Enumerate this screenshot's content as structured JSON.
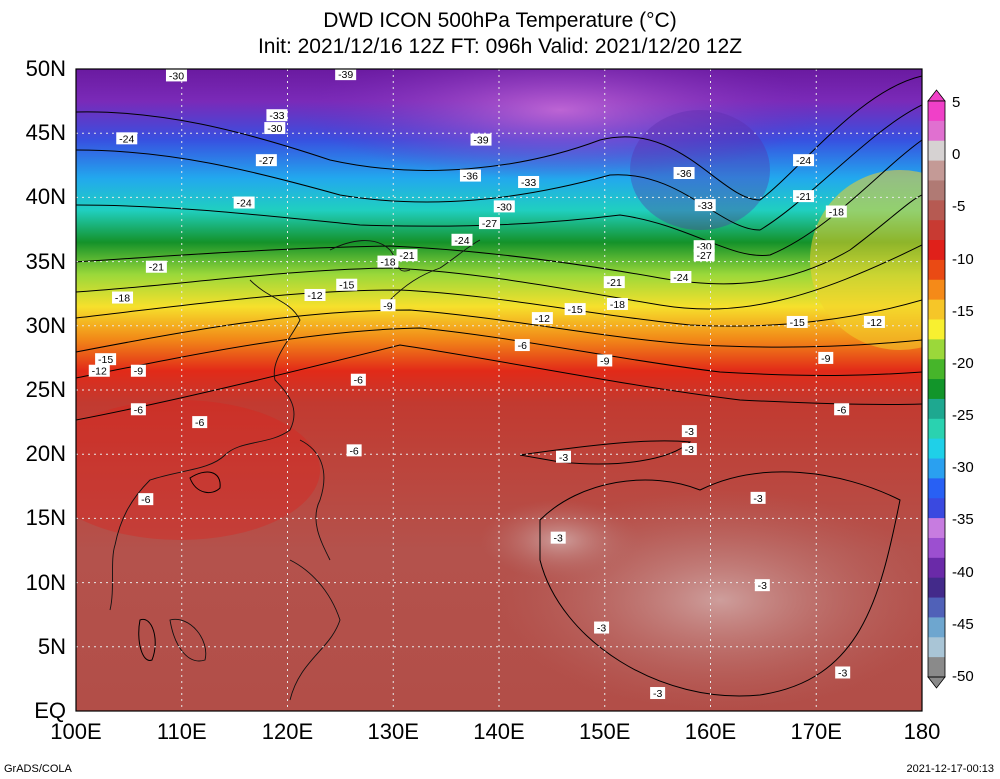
{
  "title": {
    "line1": "DWD ICON 500hPa Temperature (°C)",
    "line2": "Init: 2021/12/16 12Z  FT: 096h  Valid: 2021/12/20 12Z"
  },
  "axes": {
    "lat_labels": [
      "50N",
      "45N",
      "40N",
      "35N",
      "30N",
      "25N",
      "20N",
      "15N",
      "10N",
      "5N",
      "EQ"
    ],
    "lon_labels": [
      "100E",
      "110E",
      "120E",
      "130E",
      "140E",
      "150E",
      "160E",
      "170E",
      "180"
    ]
  },
  "colorbar": {
    "labels": [
      "5",
      "0",
      "-5",
      "-10",
      "-15",
      "-20",
      "-25",
      "-30",
      "-35",
      "-40",
      "-45",
      "-50"
    ],
    "colors": [
      "#8a8a8a",
      "#a9c5d6",
      "#6ea6cf",
      "#5061b8",
      "#432a8a",
      "#6a2aa8",
      "#9c4fd0",
      "#c77ce0",
      "#3a49e0",
      "#2860f4",
      "#2aa0f0",
      "#1fd0e8",
      "#2ad2b0",
      "#1ea890",
      "#12952a",
      "#46b52a",
      "#9bd83a",
      "#f8f030",
      "#f6c628",
      "#f58a18",
      "#ea4a14",
      "#e0201a",
      "#c83a32",
      "#b65a52",
      "#b07a74",
      "#c49a96",
      "#d6d2d2",
      "#e070d0",
      "#f040c8"
    ]
  },
  "contour_labels": [
    {
      "lon": 109.5,
      "lat": 49.5,
      "text": "-30"
    },
    {
      "lon": 125.5,
      "lat": 49.6,
      "text": "-39"
    },
    {
      "lon": 119.0,
      "lat": 46.4,
      "text": "-33"
    },
    {
      "lon": 118.8,
      "lat": 45.4,
      "text": "-30"
    },
    {
      "lon": 104.8,
      "lat": 44.6,
      "text": "-24"
    },
    {
      "lon": 138.3,
      "lat": 44.5,
      "text": "-39"
    },
    {
      "lon": 118.0,
      "lat": 42.9,
      "text": "-27"
    },
    {
      "lon": 137.3,
      "lat": 41.7,
      "text": "-36"
    },
    {
      "lon": 142.8,
      "lat": 41.2,
      "text": "-33"
    },
    {
      "lon": 157.5,
      "lat": 41.9,
      "text": "-36"
    },
    {
      "lon": 168.8,
      "lat": 42.9,
      "text": "-24"
    },
    {
      "lon": 115.9,
      "lat": 39.6,
      "text": "-24"
    },
    {
      "lon": 140.5,
      "lat": 39.3,
      "text": "-30"
    },
    {
      "lon": 159.5,
      "lat": 39.4,
      "text": "-33"
    },
    {
      "lon": 168.8,
      "lat": 40.1,
      "text": "-21"
    },
    {
      "lon": 171.9,
      "lat": 38.9,
      "text": "-18"
    },
    {
      "lon": 139.1,
      "lat": 38.0,
      "text": "-27"
    },
    {
      "lon": 136.5,
      "lat": 36.7,
      "text": "-24"
    },
    {
      "lon": 159.4,
      "lat": 36.2,
      "text": "-30"
    },
    {
      "lon": 159.4,
      "lat": 35.5,
      "text": "-27"
    },
    {
      "lon": 131.3,
      "lat": 35.5,
      "text": "-21"
    },
    {
      "lon": 129.5,
      "lat": 35.0,
      "text": "-18"
    },
    {
      "lon": 107.6,
      "lat": 34.6,
      "text": "-21"
    },
    {
      "lon": 157.2,
      "lat": 33.8,
      "text": "-24"
    },
    {
      "lon": 150.9,
      "lat": 33.4,
      "text": "-21"
    },
    {
      "lon": 125.6,
      "lat": 33.2,
      "text": "-15"
    },
    {
      "lon": 122.6,
      "lat": 32.4,
      "text": "-12"
    },
    {
      "lon": 104.4,
      "lat": 32.2,
      "text": "-18"
    },
    {
      "lon": 151.2,
      "lat": 31.7,
      "text": "-18"
    },
    {
      "lon": 129.5,
      "lat": 31.6,
      "text": "-9"
    },
    {
      "lon": 147.2,
      "lat": 31.3,
      "text": "-15"
    },
    {
      "lon": 144.1,
      "lat": 30.6,
      "text": "-12"
    },
    {
      "lon": 168.2,
      "lat": 30.3,
      "text": "-15"
    },
    {
      "lon": 175.5,
      "lat": 30.3,
      "text": "-12"
    },
    {
      "lon": 142.2,
      "lat": 28.5,
      "text": "-6"
    },
    {
      "lon": 102.8,
      "lat": 27.4,
      "text": "-15"
    },
    {
      "lon": 102.2,
      "lat": 26.5,
      "text": "-12"
    },
    {
      "lon": 105.9,
      "lat": 26.5,
      "text": "-9"
    },
    {
      "lon": 150.0,
      "lat": 27.3,
      "text": "-9"
    },
    {
      "lon": 170.9,
      "lat": 27.5,
      "text": "-9"
    },
    {
      "lon": 126.7,
      "lat": 25.8,
      "text": "-6"
    },
    {
      "lon": 105.9,
      "lat": 23.5,
      "text": "-6"
    },
    {
      "lon": 172.4,
      "lat": 23.5,
      "text": "-6"
    },
    {
      "lon": 111.7,
      "lat": 22.5,
      "text": "-6"
    },
    {
      "lon": 158.0,
      "lat": 21.8,
      "text": "-3"
    },
    {
      "lon": 126.3,
      "lat": 20.3,
      "text": "-6"
    },
    {
      "lon": 158.0,
      "lat": 20.4,
      "text": "-3"
    },
    {
      "lon": 146.1,
      "lat": 19.8,
      "text": "-3"
    },
    {
      "lon": 106.6,
      "lat": 16.5,
      "text": "-6"
    },
    {
      "lon": 164.5,
      "lat": 16.6,
      "text": "-3"
    },
    {
      "lon": 145.6,
      "lat": 13.5,
      "text": "-3"
    },
    {
      "lon": 164.9,
      "lat": 9.8,
      "text": "-3"
    },
    {
      "lon": 149.7,
      "lat": 6.5,
      "text": "-3"
    },
    {
      "lon": 172.5,
      "lat": 3.0,
      "text": "-3"
    },
    {
      "lon": 155.0,
      "lat": 1.4,
      "text": "-3"
    }
  ],
  "credits": {
    "left": "GrADS/COLA",
    "right": "2021-12-17-00:13"
  }
}
